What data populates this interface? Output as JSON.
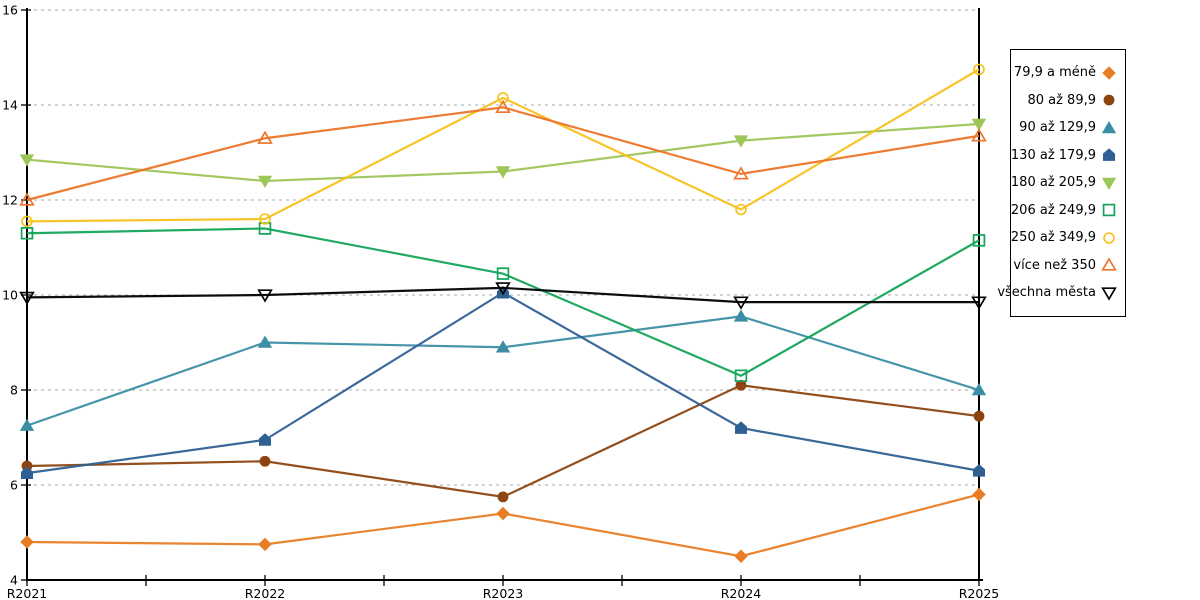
{
  "chart_data": {
    "type": "line",
    "title": "",
    "xlabel": "",
    "ylabel": "",
    "categories": [
      "R2021",
      "R2022",
      "R2023",
      "R2024",
      "R2025"
    ],
    "ylim": [
      4,
      16
    ],
    "yticks": [
      4,
      6,
      8,
      10,
      12,
      14,
      16
    ],
    "grid": "horizontal-dashed",
    "grid_color": "#aaaaaa",
    "axis_color": "#000000",
    "legend_position": "right",
    "series": [
      {
        "name": "79,9 a méně",
        "marker": "diamond",
        "fill": "solid",
        "color": "#E87D25",
        "values": [
          4.8,
          4.75,
          5.4,
          4.5,
          5.8
        ]
      },
      {
        "name": "80 až 89,9",
        "marker": "circle",
        "fill": "solid",
        "color": "#8C4511",
        "values": [
          6.4,
          6.5,
          5.75,
          8.1,
          7.45
        ]
      },
      {
        "name": "90 až 129,9",
        "marker": "triangle-up",
        "fill": "solid",
        "color": "#3C8EA4",
        "values": [
          7.25,
          9.0,
          8.9,
          9.55,
          8.0
        ]
      },
      {
        "name": "130 až 179,9",
        "marker": "pentagon",
        "fill": "solid",
        "color": "#2F6093",
        "values": [
          6.25,
          6.95,
          10.05,
          7.2,
          6.3
        ]
      },
      {
        "name": "180 až 205,9",
        "marker": "triangle-down",
        "fill": "solid",
        "color": "#9DC659",
        "values": [
          12.85,
          12.4,
          12.6,
          13.25,
          13.6
        ]
      },
      {
        "name": "206 až 249,9",
        "marker": "square",
        "fill": "open",
        "color": "#14A45A",
        "values": [
          11.3,
          11.4,
          10.45,
          8.3,
          11.15
        ]
      },
      {
        "name": "250 až 349,9",
        "marker": "circle",
        "fill": "open",
        "color": "#F7C21E",
        "values": [
          11.55,
          11.6,
          14.15,
          11.8,
          14.75
        ]
      },
      {
        "name": "více než 350",
        "marker": "triangle-up",
        "fill": "open",
        "color": "#ED7428",
        "values": [
          12.0,
          13.3,
          13.95,
          12.55,
          13.35
        ]
      },
      {
        "name": "všechna města",
        "marker": "triangle-down",
        "fill": "open",
        "color": "#000000",
        "values": [
          9.95,
          10.0,
          10.15,
          9.85,
          9.85
        ]
      }
    ]
  }
}
